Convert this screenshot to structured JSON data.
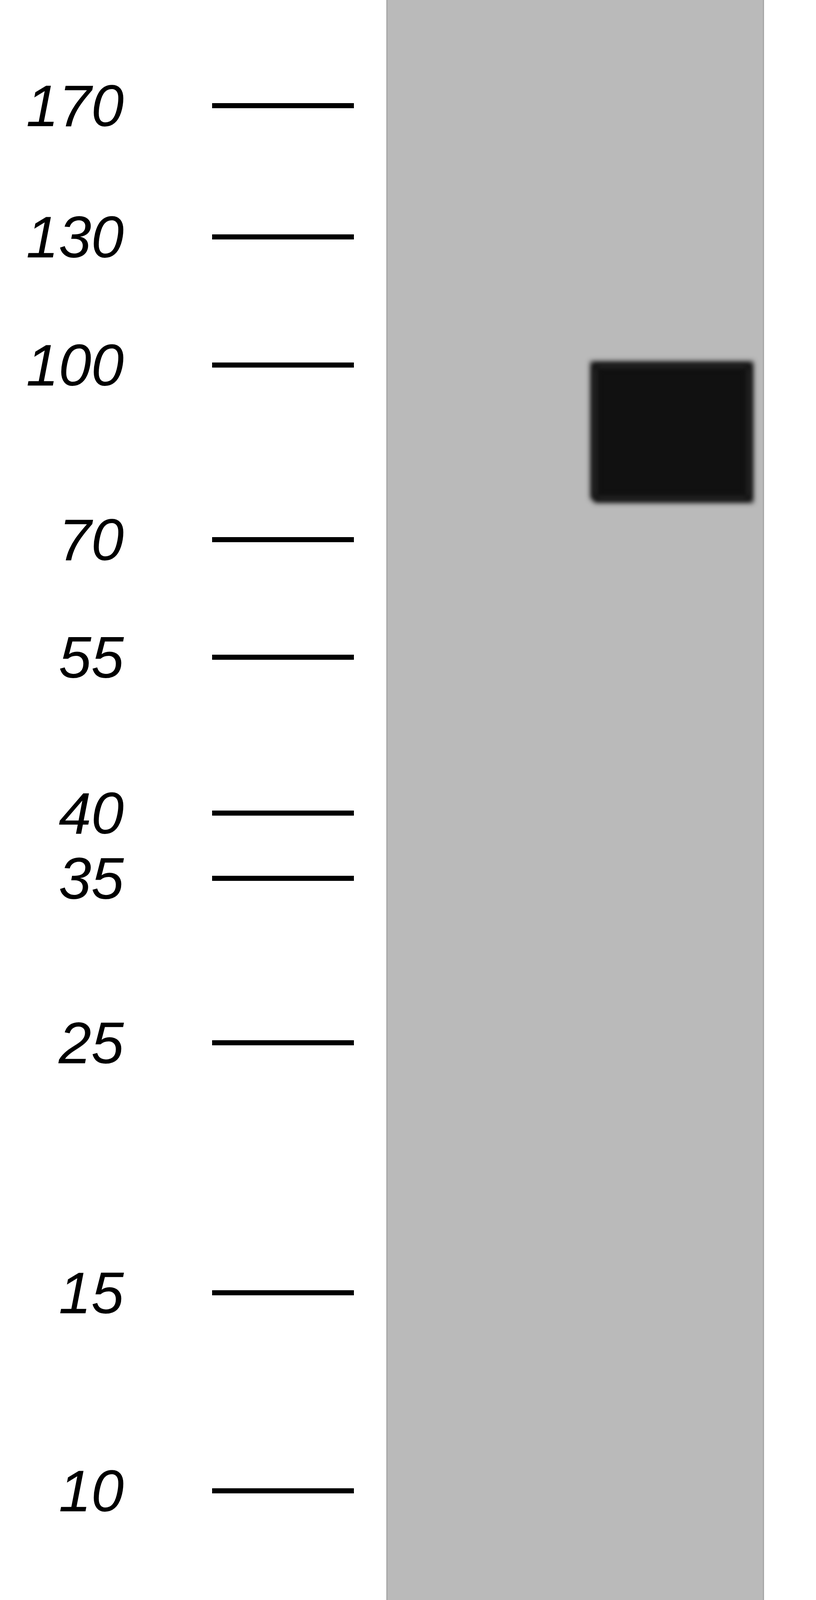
{
  "chart_data": {
    "type": "blot",
    "log": "y",
    "ylim": [
      8,
      211
    ],
    "yticks": [
      170,
      130,
      100,
      70,
      55,
      40,
      35,
      25,
      15,
      10
    ],
    "band": {
      "low": 76,
      "high": 100
    },
    "color": "#111111"
  }
}
